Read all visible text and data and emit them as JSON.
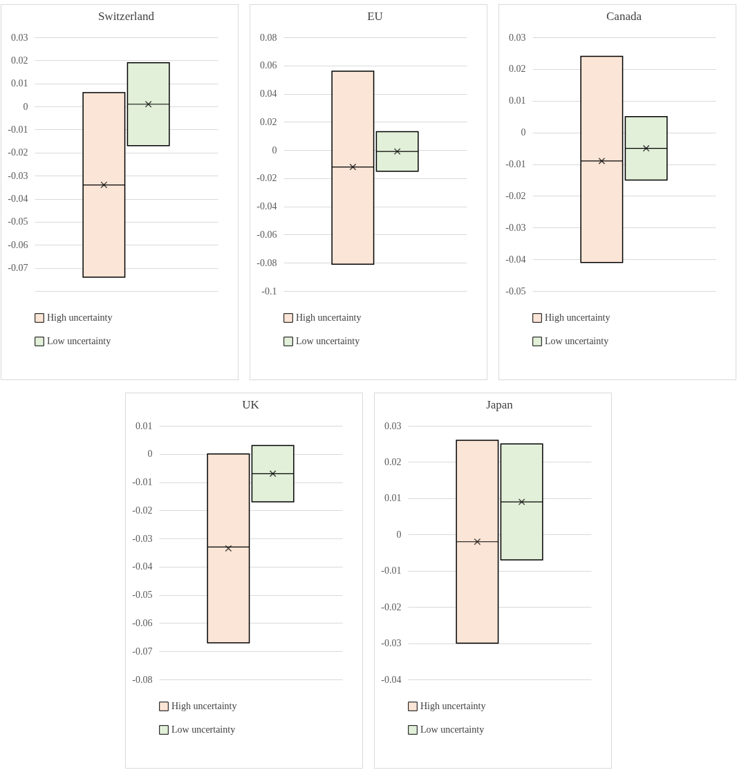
{
  "chart_data": [
    {
      "type": "box",
      "title": "Switzerland",
      "categories": [
        null
      ],
      "ylim": [
        -0.08,
        0.03
      ],
      "yticks": [
        {
          "value": -0.08,
          "label": null
        },
        -0.07,
        -0.06,
        -0.05,
        -0.04,
        -0.03,
        -0.02,
        -0.01,
        0,
        0.01,
        0.02,
        0.03
      ],
      "grid": "y",
      "legend": "bottom",
      "marker": "cross",
      "series": [
        {
          "name": "High uncertainty",
          "color": "#fbe5d6",
          "boxes": [
            {
              "low": -0.074,
              "q1": -0.074,
              "median": -0.034,
              "q3": 0.006,
              "high": 0.006,
              "mean": -0.034
            }
          ]
        },
        {
          "name": "Low uncertainty",
          "color": "#e2f0d9",
          "boxes": [
            {
              "low": -0.017,
              "q1": -0.017,
              "median": 0.001,
              "q3": 0.019,
              "high": 0.019,
              "mean": 0.001
            }
          ]
        }
      ]
    },
    {
      "type": "box",
      "title": "EU",
      "categories": [
        null
      ],
      "ylim": [
        -0.1,
        0.08
      ],
      "yticks": [
        -0.1,
        -0.08,
        -0.06,
        -0.04,
        -0.02,
        0,
        0.02,
        0.04,
        0.06,
        0.08
      ],
      "grid": "y",
      "legend": "bottom",
      "marker": "cross",
      "series": [
        {
          "name": "High uncertainty",
          "color": "#fbe5d6",
          "boxes": [
            {
              "low": -0.081,
              "q1": -0.081,
              "median": -0.012,
              "q3": 0.056,
              "high": 0.056,
              "mean": -0.012
            }
          ]
        },
        {
          "name": "Low uncertainty",
          "color": "#e2f0d9",
          "boxes": [
            {
              "low": -0.015,
              "q1": -0.015,
              "median": -0.001,
              "q3": 0.013,
              "high": 0.013,
              "mean": -0.001
            }
          ]
        }
      ]
    },
    {
      "type": "box",
      "title": "Canada",
      "categories": [
        null
      ],
      "ylim": [
        -0.05,
        0.03
      ],
      "yticks": [
        -0.05,
        -0.04,
        -0.03,
        -0.02,
        -0.01,
        0,
        0.01,
        0.02,
        0.03
      ],
      "grid": "y",
      "legend": "bottom",
      "marker": "cross",
      "series": [
        {
          "name": "High uncertainty",
          "color": "#fbe5d6",
          "boxes": [
            {
              "low": -0.041,
              "q1": -0.041,
              "median": -0.009,
              "q3": 0.024,
              "high": 0.024,
              "mean": -0.009
            }
          ]
        },
        {
          "name": "Low uncertainty",
          "color": "#e2f0d9",
          "boxes": [
            {
              "low": -0.015,
              "q1": -0.015,
              "median": -0.005,
              "q3": 0.005,
              "high": 0.005,
              "mean": -0.005
            }
          ]
        }
      ]
    },
    {
      "type": "box",
      "title": "UK",
      "categories": [
        null
      ],
      "ylim": [
        -0.08,
        0.01
      ],
      "yticks": [
        -0.08,
        -0.07,
        -0.06,
        -0.05,
        -0.04,
        -0.03,
        -0.02,
        -0.01,
        0,
        0.01
      ],
      "grid": "y",
      "legend": "bottom",
      "marker": "cross",
      "series": [
        {
          "name": "High uncertainty",
          "color": "#fbe5d6",
          "boxes": [
            {
              "low": -0.067,
              "q1": -0.067,
              "median": -0.033,
              "q3": 0,
              "high": 0,
              "mean": -0.0335
            }
          ]
        },
        {
          "name": "Low uncertainty",
          "color": "#e2f0d9",
          "boxes": [
            {
              "low": -0.017,
              "q1": -0.017,
              "median": -0.007,
              "q3": 0.003,
              "high": 0.003,
              "mean": -0.007
            }
          ]
        }
      ]
    },
    {
      "type": "box",
      "title": "Japan",
      "categories": [
        null
      ],
      "ylim": [
        -0.04,
        0.03
      ],
      "yticks": [
        -0.04,
        -0.03,
        -0.02,
        -0.01,
        0,
        0.01,
        0.02,
        0.03
      ],
      "grid": "y",
      "legend": "bottom",
      "marker": "cross",
      "series": [
        {
          "name": "High uncertainty",
          "color": "#fbe5d6",
          "boxes": [
            {
              "low": -0.03,
              "q1": -0.03,
              "median": -0.002,
              "q3": 0.026,
              "high": 0.026,
              "mean": -0.002
            }
          ]
        },
        {
          "name": "Low uncertainty",
          "color": "#e2f0d9",
          "boxes": [
            {
              "low": -0.007,
              "q1": -0.007,
              "median": 0.009,
              "q3": 0.025,
              "high": 0.025,
              "mean": 0.009
            }
          ]
        }
      ]
    }
  ]
}
